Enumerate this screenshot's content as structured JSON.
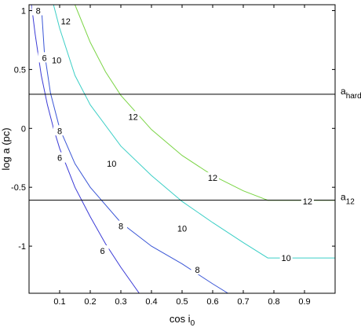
{
  "chart_data": {
    "type": "line",
    "title": "",
    "xlabel": "cos i",
    "xlabel_sub": "0",
    "ylabel": "log a (pc)",
    "xlim": [
      0.0,
      1.0
    ],
    "ylim": [
      -1.4,
      1.05
    ],
    "xticks": [
      0.1,
      0.2,
      0.3,
      0.4,
      0.5,
      0.6,
      0.7,
      0.8,
      0.9
    ],
    "yticks": [
      -1,
      -0.5,
      0,
      0.5,
      1
    ],
    "grid": false,
    "reference_lines": [
      {
        "label": "a",
        "sub": "hard",
        "y": 0.29
      },
      {
        "label": "a",
        "sub": "12",
        "y": -0.61
      }
    ],
    "series": [
      {
        "level": "6",
        "color": "#3a3ad6",
        "x": [
          0.008,
          0.02,
          0.04,
          0.06,
          0.08,
          0.1,
          0.15,
          0.2,
          0.25,
          0.3,
          0.36
        ],
        "y": [
          1.05,
          0.8,
          0.45,
          0.2,
          0.0,
          -0.17,
          -0.5,
          -0.75,
          -0.98,
          -1.18,
          -1.4
        ],
        "labels": [
          {
            "text": "6",
            "x": 0.05,
            "y": 0.6
          },
          {
            "text": "6",
            "x": 0.1,
            "y": -0.25
          },
          {
            "text": "6",
            "x": 0.24,
            "y": -1.04
          }
        ]
      },
      {
        "level": "8",
        "color": "#3a56d6",
        "x": [
          0.04,
          0.05,
          0.07,
          0.1,
          0.15,
          0.2,
          0.3,
          0.4,
          0.5,
          0.6,
          0.65
        ],
        "y": [
          1.05,
          0.65,
          0.3,
          0.0,
          -0.3,
          -0.5,
          -0.8,
          -1.0,
          -1.15,
          -1.32,
          -1.4
        ],
        "labels": [
          {
            "text": "8",
            "x": 0.03,
            "y": 1.0
          },
          {
            "text": "8",
            "x": 0.1,
            "y": -0.02
          },
          {
            "text": "8",
            "x": 0.3,
            "y": -0.83
          },
          {
            "text": "8",
            "x": 0.55,
            "y": -1.2
          }
        ]
      },
      {
        "level": "10",
        "color": "#3ccfc6",
        "x": [
          0.08,
          0.1,
          0.15,
          0.2,
          0.3,
          0.4,
          0.5,
          0.6,
          0.7,
          0.78,
          1.0
        ],
        "y": [
          1.05,
          0.85,
          0.45,
          0.2,
          -0.15,
          -0.4,
          -0.62,
          -0.8,
          -0.97,
          -1.1,
          -1.1
        ],
        "labels": [
          {
            "text": "10",
            "x": 0.09,
            "y": 0.58
          },
          {
            "text": "10",
            "x": 0.27,
            "y": -0.3
          },
          {
            "text": "10",
            "x": 0.5,
            "y": -0.85
          },
          {
            "text": "10",
            "x": 0.84,
            "y": -1.1
          }
        ]
      },
      {
        "level": "12",
        "color": "#7ad444",
        "x": [
          0.15,
          0.2,
          0.25,
          0.3,
          0.4,
          0.5,
          0.6,
          0.7,
          0.78,
          1.0
        ],
        "y": [
          1.05,
          0.73,
          0.48,
          0.28,
          -0.01,
          -0.23,
          -0.4,
          -0.53,
          -0.61,
          -0.61
        ],
        "labels": [
          {
            "text": "12",
            "x": 0.12,
            "y": 0.91
          },
          {
            "text": "12",
            "x": 0.34,
            "y": 0.1
          },
          {
            "text": "12",
            "x": 0.6,
            "y": -0.42
          },
          {
            "text": "12",
            "x": 0.91,
            "y": -0.62
          }
        ]
      }
    ]
  }
}
